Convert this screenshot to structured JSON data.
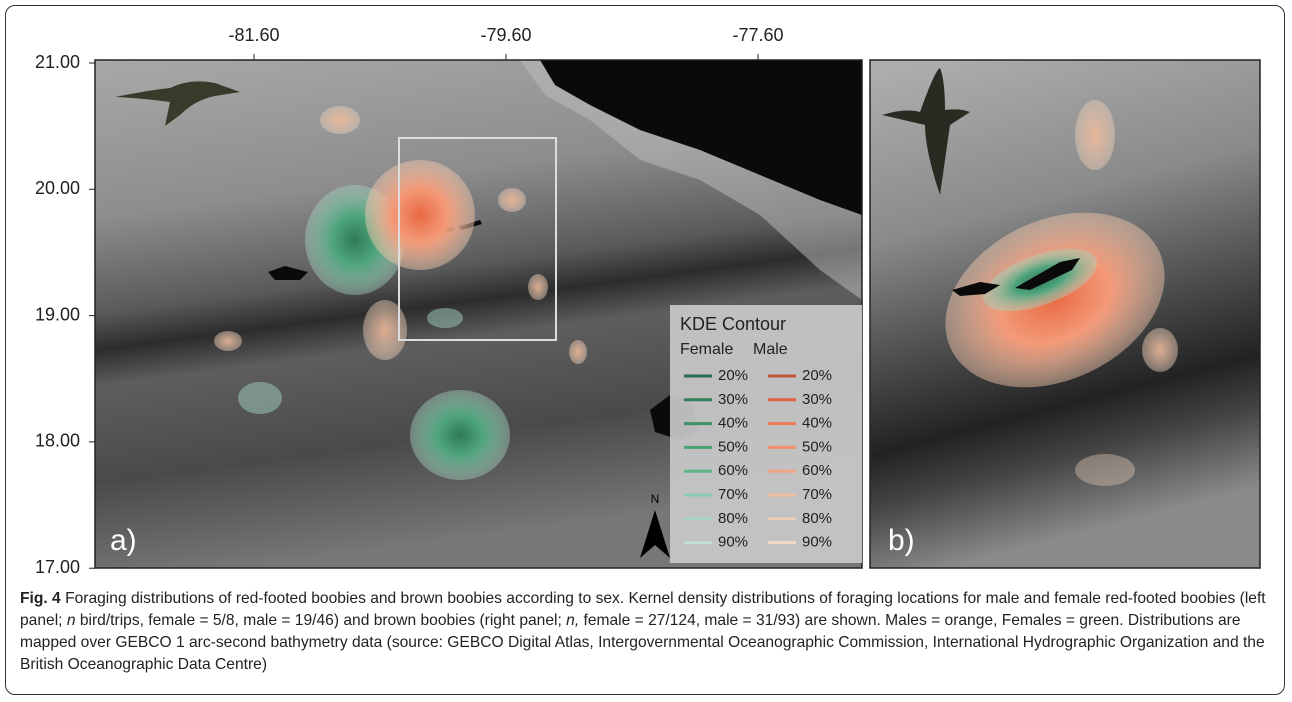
{
  "panel_a": {
    "label": "a)",
    "xticks": [
      "-81.60",
      "-79.60",
      "-77.60"
    ],
    "yticks": [
      "21.00",
      "20.00",
      "19.00",
      "18.00",
      "17.00"
    ],
    "north": "N",
    "legend": {
      "title": "KDE Contour",
      "headers": [
        "Female",
        "Male"
      ],
      "rows": [
        [
          "20%",
          "20%"
        ],
        [
          "30%",
          "30%"
        ],
        [
          "40%",
          "40%"
        ],
        [
          "50%",
          "50%"
        ],
        [
          "60%",
          "60%"
        ],
        [
          "70%",
          "70%"
        ],
        [
          "80%",
          "80%"
        ],
        [
          "90%",
          "90%"
        ]
      ]
    }
  },
  "panel_b": {
    "label": "b)"
  },
  "caption": {
    "label": "Fig. 4",
    "parts": [
      " Foraging distributions of red-footed boobies and brown boobies according to sex. Kernel density distributions of foraging locations for male and female red-footed boobies (left panel; ",
      "n",
      " bird/trips, female = 5/8, male = 19/46) and brown boobies (right panel; ",
      "n,",
      " female = 27/124, male = 31/93) are shown. Males = orange, Females = green. Distributions are mapped over GEBCO 1 arc-second bathymetry data (source: GEBCO Digital Atlas, Intergovernmental Oceanographic Commission, International Hydrographic Organization and the British Oceanographic Data Centre)"
    ]
  }
}
